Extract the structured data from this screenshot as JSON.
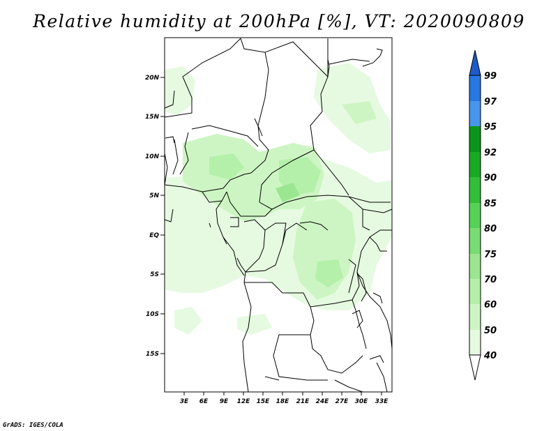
{
  "title": "Relative humidity at 200hPa [%], VT: 2020090809",
  "credit": "GrADS: IGES/COLA",
  "map": {
    "lat_labels": [
      "20N",
      "15N",
      "10N",
      "5N",
      "EQ",
      "5S",
      "10S",
      "15S"
    ],
    "lon_labels": [
      "3E",
      "6E",
      "9E",
      "12E",
      "15E",
      "18E",
      "21E",
      "24E",
      "27E",
      "30E",
      "33E"
    ]
  },
  "colorbar": {
    "labels": [
      "40",
      "50",
      "60",
      "70",
      "75",
      "80",
      "85",
      "90",
      "92",
      "95",
      "97",
      "99"
    ],
    "colors": [
      "#ffffff",
      "#e6fae1",
      "#cdf5c3",
      "#b4f0aa",
      "#9be691",
      "#78dc73",
      "#55d255",
      "#32be37",
      "#19aa23",
      "#0a961a",
      "#4696eb",
      "#2878e1",
      "#1e5ac8"
    ]
  }
}
